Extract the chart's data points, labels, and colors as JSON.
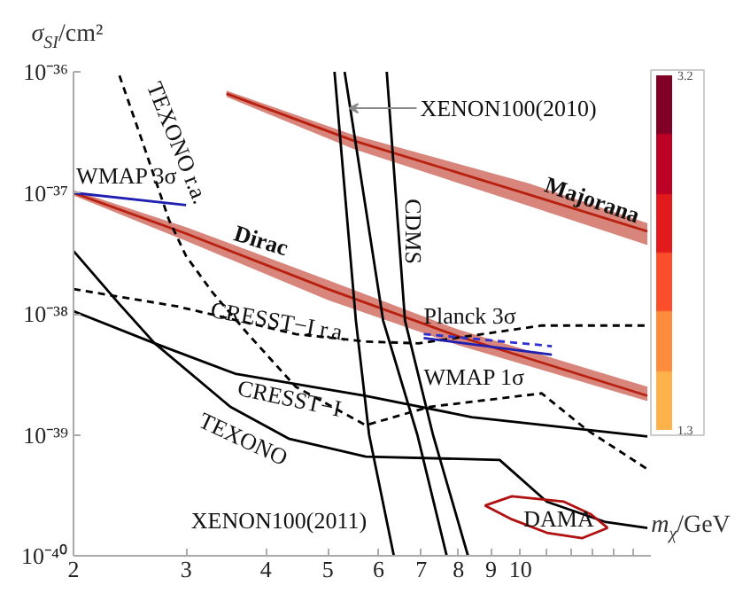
{
  "chart_data": {
    "type": "line",
    "xlabel": "m$_{χ}$/GeV",
    "ylabel": "σ$_{SI}$/cm²",
    "log": "xy",
    "xlim": [
      2,
      16
    ],
    "ylim": [
      1e-40,
      1e-36
    ],
    "xticks": [
      2,
      3,
      4,
      5,
      6,
      7,
      8,
      9,
      10,
      {
        "value": 11,
        "label": null
      },
      {
        "value": 12,
        "label": null
      },
      {
        "value": 13,
        "label": null
      },
      {
        "value": 14,
        "label": null
      },
      {
        "value": 15,
        "label": null
      }
    ],
    "yticks": [
      {
        "value": 1e-40,
        "label": "10⁻⁴⁰"
      },
      {
        "value": 1e-39,
        "label": "10⁻³⁹"
      },
      {
        "value": 1e-38,
        "label": "10⁻³⁸"
      },
      {
        "value": 1e-37,
        "label": "10⁻³⁷"
      },
      {
        "value": 1e-36,
        "label": "10⁻³⁶"
      }
    ],
    "clim": [
      1.3,
      3.2
    ],
    "cticks": [
      1.3,
      3.2
    ],
    "series": [
      {
        "color": "#b82010",
        "x": [
          3.47,
          5.48,
          10.3,
          15.8
        ],
        "values": [
          6.6e-37,
          2.7e-37,
          9.7e-38,
          4.8e-38
        ],
        "lower": [
          6.2e-37,
          2.3e-37,
          7.8e-38,
          3.7e-38
        ],
        "upper": [
          7e-37,
          3e-37,
          1.2e-37,
          5.6e-38
        ]
      },
      {
        "color": "#b82010",
        "x": [
          2,
          3,
          5,
          8,
          15.8
        ],
        "values": [
          1e-37,
          4.6e-38,
          1.6e-38,
          6.5e-39,
          2.1e-39
        ],
        "lower": [
          9.5e-38,
          4e-38,
          1.3e-38,
          5.5e-39,
          1.9e-39
        ],
        "upper": [
          1.05e-37,
          5.2e-38,
          1.9e-38,
          7.4e-39,
          2.5e-39
        ]
      },
      {
        "type": "line",
        "color": "#000000",
        "line_style": "dashed",
        "x": [
          2.36,
          2.56,
          2.82,
          3.0,
          3.3,
          3.75,
          4.45,
          5.73,
          7.2,
          10.8,
          12.7,
          15.8
        ],
        "values": [
          9.3e-37,
          2.7e-37,
          6e-38,
          3e-38,
          1.5e-38,
          6.8e-39,
          2.5e-39,
          1.2e-39,
          1.7e-39,
          2.2e-39,
          1.1e-39,
          5.2e-40
        ]
      },
      {
        "type": "line",
        "color": "#000000",
        "line_style": "dashed",
        "x": [
          2,
          2.91,
          4.45,
          5.73,
          6.93,
          10.8,
          15.8
        ],
        "values": [
          1.6e-38,
          1.15e-38,
          6.8e-39,
          5.9e-39,
          5.7e-39,
          8e-39,
          8e-39
        ]
      },
      {
        "type": "line",
        "color": "#000000",
        "line_style": "solid",
        "x": [
          2,
          2.68,
          3.58,
          5.73,
          8.39,
          15.8
        ],
        "values": [
          1.05e-38,
          5.7e-39,
          3.2e-39,
          2.1e-39,
          1.4e-39,
          9.7e-40
        ]
      },
      {
        "type": "line",
        "color": "#000000",
        "line_style": "solid",
        "x": [
          2,
          2.36,
          2.68,
          3.52,
          4.34,
          5.73,
          9.28,
          11.0,
          13.6,
          15.8
        ],
        "values": [
          3.3e-38,
          1.2e-38,
          5.7e-39,
          1.7e-39,
          9.3e-40,
          6.6e-40,
          6.2e-40,
          2.8e-40,
          1.9e-40,
          1.7e-40
        ]
      },
      {
        "type": "line",
        "color": "#000000",
        "line_style": "solid",
        "x": [
          5.12,
          5.53,
          5.8,
          6.34
        ],
        "values": [
          1e-36,
          8.8e-39,
          1e-39,
          1e-40
        ]
      },
      {
        "type": "line",
        "color": "#000000",
        "line_style": "solid",
        "x": [
          5.31,
          6.1,
          6.9,
          7.67
        ],
        "values": [
          1e-36,
          8.8e-39,
          1e-39,
          1e-40
        ]
      },
      {
        "type": "line",
        "color": "#000000",
        "line_style": "solid",
        "x": [
          6.18,
          6.6,
          7.3,
          8.28
        ],
        "values": [
          1e-36,
          8.8e-39,
          1e-39,
          1e-40
        ]
      },
      {
        "type": "line",
        "color": "#2020b0",
        "line_style": "solid",
        "x": [
          2,
          3.0
        ],
        "values": [
          1e-37,
          7.9e-38
        ]
      },
      {
        "type": "line",
        "color": "#3030d0",
        "line_style": "dashed",
        "x": [
          7.06,
          11.2
        ],
        "values": [
          6.8e-39,
          5.4e-39
        ]
      },
      {
        "type": "line",
        "color": "#2020b0",
        "line_style": "solid",
        "x": [
          7.06,
          11.2
        ],
        "values": [
          6.3e-39,
          4.6e-39
        ]
      },
      {
        "color": "#b01010",
        "line_style": "solid",
        "x": [
          8.8,
          9.7,
          11.7,
          12.9,
          13.7
        ],
        "values": [
          2.6e-40,
          3.1e-40,
          2.8e-40,
          2.2e-40,
          1.7e-40
        ]
      },
      {
        "color": "#b01010",
        "line_style": "solid",
        "x": [
          8.8,
          9.7,
          11.0,
          12.5,
          13.7
        ],
        "values": [
          2.6e-40,
          2e-40,
          1.55e-40,
          1.4e-40,
          1.7e-40
        ]
      }
    ],
    "annotations": [
      {
        "text": "WMAP 3σ",
        "x": 2.02,
        "y": 1.08e-37
      },
      "TEXONO r.a.",
      "Dirac",
      "Majorana",
      {
        "text": "XENON100(2010)",
        "x": 5.4,
        "y": 5e-37
      },
      "CDMS",
      {
        "text": "CRESST−I r.a.",
        "x": 4.2,
        "y": 8.7e-39
      },
      "CRESST−I",
      "TEXONO",
      "XENON100(2011)",
      {
        "text": "Planck 3σ",
        "x": 7.06,
        "y": 8.8e-39
      },
      {
        "text": "WMAP 1σ",
        "x": 7.06,
        "y": 3e-39
      },
      "DAMA"
    ]
  }
}
